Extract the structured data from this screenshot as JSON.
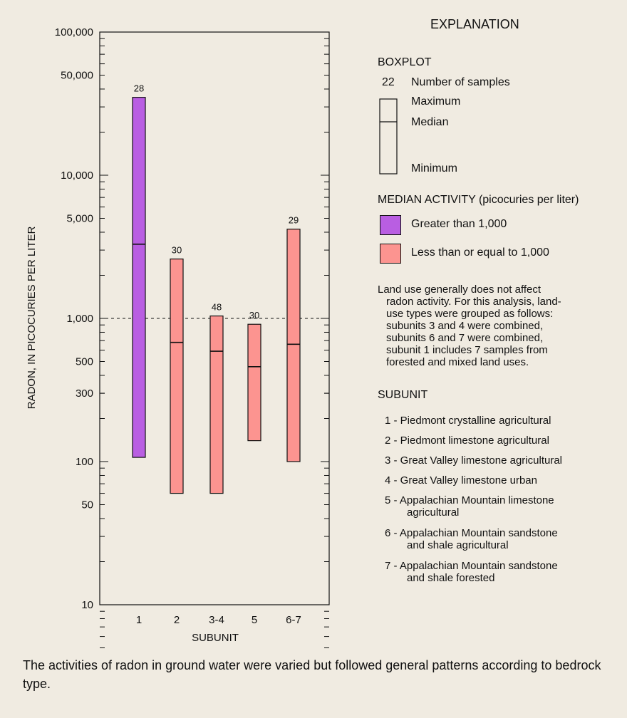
{
  "chart_data": {
    "type": "boxplot",
    "yscale": "log",
    "ylabel": "RADON, IN PICOCURIES PER LITER",
    "xlabel": "SUBUNIT",
    "ylim": [
      10,
      100000
    ],
    "yticks": [
      {
        "value": 100000,
        "label": "100,000"
      },
      {
        "value": 50000,
        "label": "50,000"
      },
      {
        "value": 10000,
        "label": "10,000"
      },
      {
        "value": 5000,
        "label": "5,000"
      },
      {
        "value": 1000,
        "label": "1,000"
      },
      {
        "value": 500,
        "label": "500"
      },
      {
        "value": 300,
        "label": "300"
      },
      {
        "value": 100,
        "label": "100"
      },
      {
        "value": 50,
        "label": "50"
      },
      {
        "value": 10,
        "label": "10"
      }
    ],
    "reference_line": {
      "value": 1000,
      "style": "dashed"
    },
    "categories": [
      "1",
      "2",
      "3-4",
      "5",
      "6-7"
    ],
    "boxes": [
      {
        "category": "1",
        "n": "28",
        "min": 107,
        "median": 3300,
        "max": 35000,
        "activity": "high"
      },
      {
        "category": "2",
        "n": "30",
        "min": 60,
        "median": 680,
        "max": 2600,
        "activity": "low"
      },
      {
        "category": "3-4",
        "n": "48",
        "min": 60,
        "median": 590,
        "max": 1040,
        "activity": "low"
      },
      {
        "category": "5",
        "n": "30",
        "min": 140,
        "median": 460,
        "max": 910,
        "activity": "low"
      },
      {
        "category": "6-7",
        "n": "29",
        "min": 100,
        "median": 660,
        "max": 4200,
        "activity": "low"
      }
    ],
    "colors": {
      "high": "#b95ee2",
      "low": "#fc9490",
      "line": "#111111"
    }
  },
  "legend": {
    "title": "EXPLANATION",
    "boxplot_heading": "BOXPLOT",
    "sample_count_example": "22",
    "sample_count_label": "Number of samples",
    "maximum_label": "Maximum",
    "median_label": "Median",
    "minimum_label": "Minimum",
    "activity_heading": "MEDIAN ACTIVITY (picocuries per liter)",
    "high_label": "Greater than 1,000",
    "low_label": "Less than or equal to 1,000",
    "land_use_note": [
      "Land use generally does not affect",
      "radon activity. For this analysis, land-",
      "use types were grouped as follows:",
      "subunits 3 and 4 were combined,",
      "subunits 6 and 7 were combined,",
      "subunit 1 includes 7 samples from",
      "forested and mixed land uses."
    ],
    "subunit_heading": "SUBUNIT",
    "subunits": [
      {
        "line1": "1 - Piedmont crystalline agricultural",
        "line2": ""
      },
      {
        "line1": "2 - Piedmont limestone agricultural",
        "line2": ""
      },
      {
        "line1": "3 - Great Valley limestone agricultural",
        "line2": ""
      },
      {
        "line1": "4 - Great Valley limestone urban",
        "line2": ""
      },
      {
        "line1": "5 - Appalachian Mountain limestone",
        "line2": "agricultural"
      },
      {
        "line1": "6 - Appalachian Mountain sandstone",
        "line2": "and shale agricultural"
      },
      {
        "line1": "7 - Appalachian Mountain sandstone",
        "line2": "and shale forested"
      }
    ]
  },
  "caption": "The activities of radon in ground water were varied but followed general patterns according to bedrock type."
}
